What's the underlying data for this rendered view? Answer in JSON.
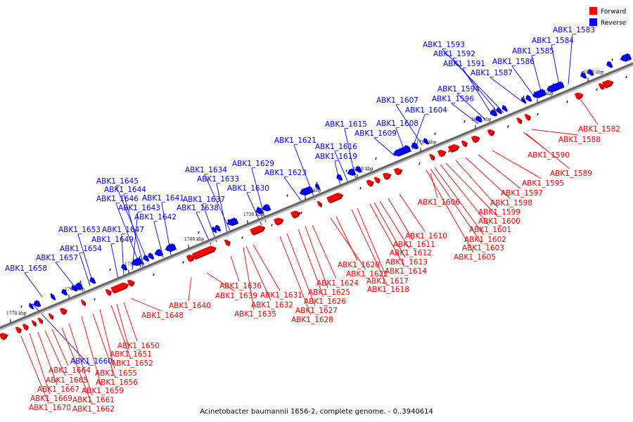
{
  "caption": "Acinetobacter baumannii 1656-2, complete genome. - 0..3940614",
  "legend": [
    {
      "label": "Forward",
      "color": "#ff0000"
    },
    {
      "label": "Reverse",
      "color": "#0000ff"
    }
  ],
  "colors": {
    "forward": "#ff0000",
    "reverse": "#0000ff",
    "backbone": "#666666"
  },
  "ruler_marks": [
    "1670 kbp",
    "1680 kbp",
    "1690 kbp",
    "1700 kbp",
    "1710 kbp",
    "1720 kbp",
    "1730 kbp",
    "1740 kbp",
    "1750 kbp",
    "1760 kbp",
    "1770 kbp"
  ],
  "reverse_labels": [
    "ABK1_1583",
    "ABK1_1584",
    "ABK1_1585",
    "ABK1_1586",
    "ABK1_1587",
    "ABK1_1593",
    "ABK1_1592",
    "ABK1_1591",
    "ABK1_1594",
    "ABK1_1596",
    "ABK1_1607",
    "ABK1_1604",
    "ABK1_1608",
    "ABK1_1609",
    "ABK1_1615",
    "ABK1_1616",
    "ABK1_1619",
    "ABK1_1621",
    "ABK1_1623",
    "ABK1_1629",
    "ABK1_1630",
    "ABK1_1634",
    "ABK1_1633",
    "ABK1_1637",
    "ABK1_1638",
    "ABK1_1641",
    "ABK1_1642",
    "ABK1_1645",
    "ABK1_1644",
    "ABK1_1646",
    "ABK1_1643",
    "ABK1_1647",
    "ABK1_1649",
    "ABK1_1653",
    "ABK1_1654",
    "ABK1_1657",
    "ABK1_1658",
    "ABK1_1660"
  ],
  "forward_labels": [
    "ABK1_1582",
    "ABK1_1588",
    "ABK1_1590",
    "ABK1_1589",
    "ABK1_1595",
    "ABK1_1597",
    "ABK1_1598",
    "ABK1_1599",
    "ABK1_1600",
    "ABK1_1601",
    "ABK1_1602",
    "ABK1_1603",
    "ABK1_1605",
    "ABK1_1606",
    "ABK1_1610",
    "ABK1_1611",
    "ABK1_1612",
    "ABK1_1613",
    "ABK1_1614",
    "ABK1_1617",
    "ABK1_1618",
    "ABK1_1620",
    "ABK1_1622",
    "ABK1_1624",
    "ABK1_1625",
    "ABK1_1626",
    "ABK1_1627",
    "ABK1_1628",
    "ABK1_1631",
    "ABK1_1632",
    "ABK1_1635",
    "ABK1_1636",
    "ABK1_1639",
    "ABK1_1640",
    "ABK1_1648",
    "ABK1_1650",
    "ABK1_1651",
    "ABK1_1652",
    "ABK1_1655",
    "ABK1_1656",
    "ABK1_1659",
    "ABK1_1661",
    "ABK1_1662",
    "ABK1_1664",
    "ABK1_1665",
    "ABK1_1667",
    "ABK1_1669",
    "ABK1_1670"
  ]
}
